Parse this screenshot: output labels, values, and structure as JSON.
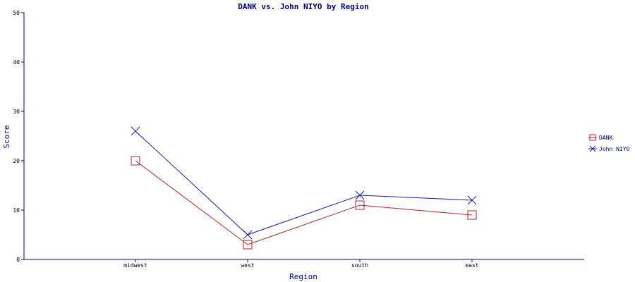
{
  "chart_data": {
    "type": "line",
    "title": "DANK vs. John NIYO by Region",
    "xlabel": "Region",
    "ylabel": "Score",
    "categories": [
      "midwest",
      "west",
      "south",
      "east"
    ],
    "ylim": [
      0,
      50
    ],
    "yticks": [
      0,
      10,
      20,
      30,
      40,
      50
    ],
    "grid": false,
    "legend_position": "right",
    "series": [
      {
        "name": "DANK",
        "values": [
          20,
          3,
          11,
          9
        ],
        "color": "#b22222",
        "marker": "square"
      },
      {
        "name": "John NIYO",
        "values": [
          26,
          5,
          13,
          12
        ],
        "color": "#1a1aa6",
        "marker": "x"
      }
    ],
    "axis_color": "#000080"
  }
}
